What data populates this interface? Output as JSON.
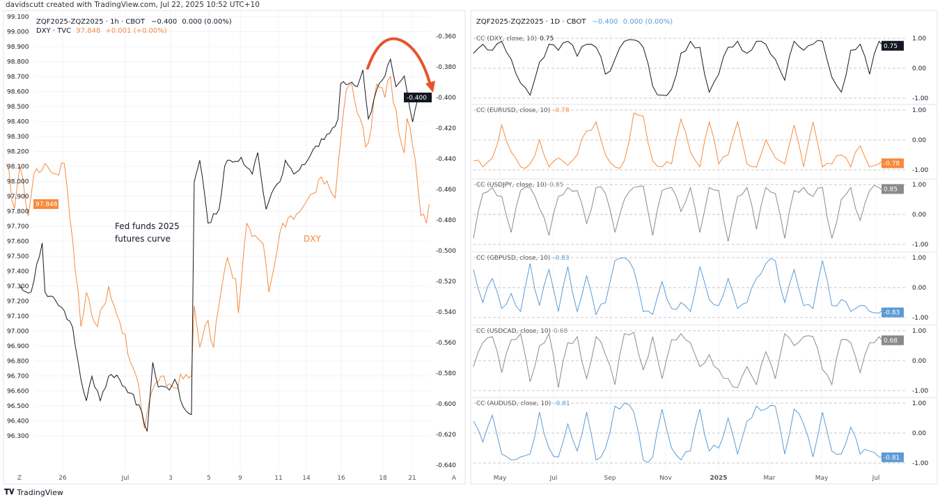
{
  "credit": "davidscutt created with TradingView.com, Jul 22, 2025 10:52 UTC+10",
  "footer": {
    "brand": "TradingView"
  },
  "colors": {
    "black_series": "#131722",
    "dxy": "#f7893b",
    "arrow": "#e8532a",
    "blue": "#5b9bd5",
    "grey": "#8a8a8a"
  },
  "chart_data": [
    {
      "type": "line",
      "title": "ZQF2025-ZQZ2025 · 1h · CBOT vs DXY · TVC",
      "legend": {
        "series1": {
          "name": "ZQF2025-ZQZ2025 · 1h · CBOT",
          "last": "−0.400",
          "change": "0.000 (0.00%)"
        },
        "series2": {
          "name": "DXY · TVC",
          "last": "97.848",
          "change": "+0.001 (+0.00%)"
        }
      },
      "annotations": {
        "black_label_line1": "Fed funds 2025",
        "black_label_line2": "futures curve",
        "orange_label": "DXY"
      },
      "x_ticks": [
        "Z",
        "26",
        "Jul",
        "3",
        "5",
        "9",
        "11",
        "14",
        "16",
        "18",
        "21",
        "A"
      ],
      "left_axis": {
        "label": "DXY",
        "range": [
          96.3,
          99.1
        ],
        "ticks": [
          "99.100",
          "99.000",
          "98.900",
          "98.800",
          "98.700",
          "98.600",
          "98.500",
          "98.400",
          "98.300",
          "98.200",
          "98.100",
          "98.000",
          "97.900",
          "97.800",
          "97.700",
          "97.600",
          "97.500",
          "97.400",
          "97.300",
          "97.200",
          "97.100",
          "97.000",
          "96.900",
          "96.800",
          "96.700",
          "96.600",
          "96.500",
          "96.400",
          "96.300"
        ],
        "last_label": "97.848"
      },
      "right_axis": {
        "label": "ZQF2025-ZQZ2025",
        "range": [
          -0.64,
          -0.36
        ],
        "ticks": [
          "-0.360",
          "-0.380",
          "-0.400",
          "-0.420",
          "-0.440",
          "-0.460",
          "-0.480",
          "-0.500",
          "-0.520",
          "-0.540",
          "-0.560",
          "-0.580",
          "-0.600",
          "-0.620",
          "-0.640"
        ],
        "last_label": "-0.400"
      },
      "series": [
        {
          "name": "ZQF2025-ZQZ2025",
          "axis": "right",
          "points": [
            [
              6,
              -0.523
            ],
            [
              10,
              -0.527
            ],
            [
              12,
              -0.509
            ],
            [
              14,
              -0.495
            ],
            [
              15,
              -0.527
            ],
            [
              20,
              -0.536
            ],
            [
              25,
              -0.55
            ],
            [
              28,
              -0.584
            ],
            [
              30,
              -0.598
            ],
            [
              32,
              -0.582
            ],
            [
              35,
              -0.598
            ],
            [
              38,
              -0.582
            ],
            [
              42,
              -0.584
            ],
            [
              46,
              -0.593
            ],
            [
              50,
              -0.605
            ],
            [
              52,
              -0.618
            ],
            [
              54,
              -0.573
            ],
            [
              56,
              -0.589
            ],
            [
              60,
              -0.591
            ],
            [
              62,
              -0.584
            ],
            [
              65,
              -0.602
            ],
            [
              68,
              -0.607
            ],
            [
              69,
              -0.455
            ],
            [
              71,
              -0.441
            ],
            [
              74,
              -0.482
            ],
            [
              78,
              -0.473
            ],
            [
              80,
              -0.445
            ],
            [
              82,
              -0.441
            ],
            [
              86,
              -0.439
            ],
            [
              90,
              -0.45
            ],
            [
              92,
              -0.436
            ],
            [
              95,
              -0.473
            ],
            [
              98,
              -0.459
            ],
            [
              100,
              -0.455
            ],
            [
              102,
              -0.441
            ],
            [
              105,
              -0.45
            ],
            [
              110,
              -0.441
            ],
            [
              115,
              -0.427
            ],
            [
              119,
              -0.42
            ],
            [
              121,
              -0.414
            ],
            [
              122,
              -0.391
            ],
            [
              125,
              -0.391
            ],
            [
              128,
              -0.393
            ],
            [
              130,
              -0.382
            ],
            [
              132,
              -0.414
            ],
            [
              135,
              -0.395
            ],
            [
              138,
              -0.386
            ],
            [
              140,
              -0.375
            ],
            [
              142,
              -0.393
            ],
            [
              145,
              -0.386
            ],
            [
              148,
              -0.416
            ],
            [
              150,
              -0.4
            ],
            [
              153,
              -0.4
            ],
            [
              155,
              -0.4
            ]
          ]
        },
        {
          "name": "DXY",
          "axis": "left",
          "points": [
            [
              1,
              98.12
            ],
            [
              4,
              97.82
            ],
            [
              6,
              98.1
            ],
            [
              9,
              97.77
            ],
            [
              11,
              98.05
            ],
            [
              15,
              98.12
            ],
            [
              19,
              98.05
            ],
            [
              22,
              98.12
            ],
            [
              25,
              97.61
            ],
            [
              28,
              97.03
            ],
            [
              30,
              97.26
            ],
            [
              34,
              97.03
            ],
            [
              38,
              97.3
            ],
            [
              40,
              97.17
            ],
            [
              44,
              96.98
            ],
            [
              46,
              96.79
            ],
            [
              49,
              96.63
            ],
            [
              51,
              96.35
            ],
            [
              54,
              96.61
            ],
            [
              58,
              96.7
            ],
            [
              61,
              96.63
            ],
            [
              65,
              96.68
            ],
            [
              68,
              96.7
            ],
            [
              69,
              97.17
            ],
            [
              71,
              96.89
            ],
            [
              74,
              97.07
            ],
            [
              76,
              96.89
            ],
            [
              79,
              97.3
            ],
            [
              81,
              97.49
            ],
            [
              84,
              97.35
            ],
            [
              85,
              97.12
            ],
            [
              88,
              97.72
            ],
            [
              90,
              97.63
            ],
            [
              94,
              97.58
            ],
            [
              96,
              97.26
            ],
            [
              99,
              97.54
            ],
            [
              101,
              97.72
            ],
            [
              104,
              97.77
            ],
            [
              108,
              97.82
            ],
            [
              111,
              97.91
            ],
            [
              115,
              98.03
            ],
            [
              118,
              97.95
            ],
            [
              120,
              97.89
            ],
            [
              122,
              98.28
            ],
            [
              124,
              98.61
            ],
            [
              126,
              98.65
            ],
            [
              129,
              98.42
            ],
            [
              131,
              98.23
            ],
            [
              133,
              98.35
            ],
            [
              135,
              98.65
            ],
            [
              138,
              98.56
            ],
            [
              140,
              98.7
            ],
            [
              143,
              98.33
            ],
            [
              145,
              98.19
            ],
            [
              146,
              98.42
            ],
            [
              149,
              98.14
            ],
            [
              151,
              97.77
            ],
            [
              153,
              97.72
            ],
            [
              154,
              97.85
            ]
          ]
        }
      ]
    },
    {
      "type": "line",
      "title": "ZQF2025-ZQZ2025 · 1D · CBOT",
      "legend": {
        "last": "−0.400",
        "change": "0.000 (0.00%)"
      },
      "x_ticks": [
        "May",
        "Jul",
        "Sep",
        "Nov",
        "2025",
        "Mar",
        "May",
        "Jul"
      ],
      "y_ticks": [
        "1.00",
        "0.00",
        "-1.00"
      ],
      "ylim": [
        -1,
        1
      ],
      "panes": [
        {
          "label": "CC (DXY, close, 10)",
          "last": "0.75",
          "color": "#131722",
          "values": [
            0.5,
            0.8,
            0.6,
            0.9,
            0.3,
            -0.5,
            -0.9,
            0.2,
            0.8,
            0.6,
            0.9,
            0.4,
            0.8,
            0.7,
            -0.2,
            0.3,
            0.9,
            0.95,
            0.7,
            -0.6,
            -0.9,
            -0.7,
            0.5,
            0.9,
            0.7,
            -0.8,
            -0.2,
            0.7,
            0.9,
            0.5,
            0.9,
            0.8,
            0.3,
            -0.4,
            0.9,
            0.6,
            0.8,
            0.9,
            -0.3,
            -0.8,
            0.6,
            0.8,
            -0.2,
            0.9,
            0.75
          ]
        },
        {
          "label": "CC (EURUSD, close, 10)",
          "last": "-0.78",
          "color": "#f7893b",
          "values": [
            -0.7,
            -0.9,
            -0.6,
            0.5,
            -0.4,
            -0.9,
            -0.8,
            0.0,
            -0.9,
            -0.6,
            -0.85,
            -0.5,
            0.3,
            0.6,
            -0.5,
            -0.9,
            -0.7,
            0.9,
            0.8,
            -0.7,
            -0.9,
            -0.8,
            0.7,
            -0.4,
            -0.9,
            0.6,
            -0.8,
            -0.5,
            0.6,
            -0.8,
            -0.9,
            0.0,
            -0.6,
            -0.8,
            0.5,
            -0.9,
            0.6,
            -0.9,
            -0.8,
            -0.5,
            -0.9,
            -0.2,
            -0.9,
            -0.8,
            -0.78
          ]
        },
        {
          "label": "CC (USDJPY, close, 10)",
          "last": "0.85",
          "color": "#8a8a8a",
          "values": [
            -0.8,
            0.7,
            0.9,
            0.6,
            -0.6,
            0.8,
            0.9,
            0.2,
            -0.7,
            0.6,
            0.9,
            0.8,
            -0.3,
            0.9,
            0.7,
            -0.6,
            0.5,
            0.9,
            0.95,
            -0.7,
            0.8,
            0.9,
            0.1,
            0.9,
            -0.6,
            0.9,
            0.8,
            -0.9,
            0.6,
            0.9,
            -0.5,
            0.9,
            0.7,
            -0.8,
            0.8,
            0.9,
            0.6,
            0.9,
            -0.8,
            0.5,
            0.9,
            -0.2,
            0.8,
            0.9,
            0.85
          ]
        },
        {
          "label": "CC (GBPUSD, close, 10)",
          "last": "-0.83",
          "color": "#5b9bd5",
          "values": [
            0.6,
            -0.5,
            0.3,
            -0.7,
            -0.2,
            -0.8,
            0.8,
            -0.6,
            0.6,
            -0.8,
            0.7,
            -0.8,
            0.4,
            -0.9,
            -0.5,
            0.9,
            1.0,
            0.6,
            -0.8,
            -0.9,
            0.2,
            -0.7,
            -0.5,
            -0.8,
            0.7,
            -0.4,
            -0.6,
            0.3,
            -0.7,
            -0.5,
            0.3,
            0.8,
            0.9,
            -0.5,
            0.6,
            -0.6,
            -0.7,
            0.9,
            -0.6,
            -0.4,
            -0.8,
            -0.6,
            -0.8,
            -0.85,
            -0.83
          ]
        },
        {
          "label": "CC (USDCAD, close, 10)",
          "last": "0.68",
          "color": "#8a8a8a",
          "values": [
            -0.2,
            0.6,
            0.8,
            -0.4,
            0.7,
            0.9,
            -0.7,
            0.5,
            0.9,
            -0.9,
            0.6,
            0.8,
            -0.6,
            0.8,
            0.2,
            -0.8,
            0.9,
            0.95,
            -0.3,
            0.8,
            -0.6,
            0.7,
            0.9,
            0.6,
            -0.2,
            0.2,
            -0.3,
            -0.6,
            -0.9,
            -0.2,
            -0.8,
            0.3,
            -0.6,
            0.9,
            0.5,
            0.8,
            0.8,
            -0.3,
            -0.8,
            0.7,
            0.6,
            -0.4,
            0.6,
            0.8,
            0.68
          ]
        },
        {
          "label": "CC (AUDUSD, close, 10)",
          "last": "-0.81",
          "color": "#5b9bd5",
          "values": [
            0.4,
            -0.3,
            0.6,
            -0.7,
            -0.9,
            -0.8,
            -0.7,
            0.7,
            -0.5,
            -0.8,
            0.3,
            -0.6,
            0.7,
            -0.9,
            -0.5,
            0.9,
            1.0,
            0.7,
            -0.9,
            -0.8,
            0.8,
            -0.5,
            -0.9,
            -0.6,
            0.8,
            -0.6,
            -0.5,
            0.5,
            -0.7,
            0.4,
            0.9,
            0.8,
            0.9,
            -0.7,
            0.8,
            0.3,
            -0.8,
            0.7,
            -0.6,
            -0.7,
            0.2,
            -0.7,
            -0.6,
            -0.8,
            -0.81
          ]
        }
      ]
    }
  ]
}
